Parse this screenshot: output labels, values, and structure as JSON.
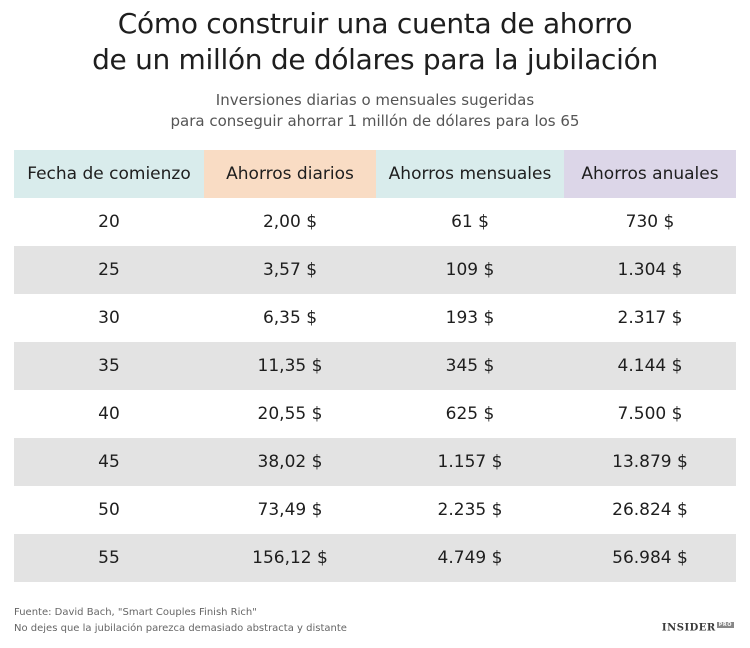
{
  "title_line1": "Cómo construir una cuenta de ahorro",
  "title_line2": "de un millón de dólares para la jubilación",
  "subtitle_line1": "Inversiones diarias o mensuales sugeridas",
  "subtitle_line2": "para conseguir ahorrar 1 millón de dólares para los 65",
  "colors": {
    "header_start": "#d9ecec",
    "header_daily": "#f9dcc4",
    "header_monthly": "#d9ecec",
    "header_annual": "#dcd6e8",
    "row_stripe": "#e3e3e3"
  },
  "chart_data": {
    "type": "table",
    "columns": [
      "Fecha de comienzo",
      "Ahorros diarios",
      "Ahorros mensuales",
      "Ahorros anuales"
    ],
    "rows": [
      [
        "20",
        "2,00 $",
        "61 $",
        "730 $"
      ],
      [
        "25",
        "3,57 $",
        "109 $",
        "1.304 $"
      ],
      [
        "30",
        "6,35 $",
        "193 $",
        "2.317 $"
      ],
      [
        "35",
        "11,35 $",
        "345 $",
        "4.144 $"
      ],
      [
        "40",
        "20,55 $",
        "625 $",
        "7.500 $"
      ],
      [
        "45",
        "38,02 $",
        "1.157 $",
        "13.879 $"
      ],
      [
        "50",
        "73,49 $",
        "2.235 $",
        "26.824 $"
      ],
      [
        "55",
        "156,12 $",
        "4.749 $",
        "56.984 $"
      ]
    ]
  },
  "footer": {
    "source": "Fuente: David Bach, \"Smart Couples Finish Rich\"",
    "note": "No dejes que la jubilación parezca demasiado abstracta y distante"
  },
  "brand": {
    "name": "INSIDER",
    "tag": "PRO"
  }
}
